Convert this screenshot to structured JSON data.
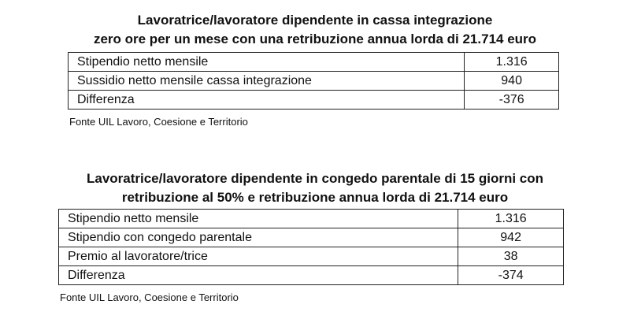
{
  "table1": {
    "title_line1": "Lavoratrice/lavoratore dipendente in cassa integrazione",
    "title_line2": "zero ore per un mese con una retribuzione annua lorda di 21.714 euro",
    "rows": [
      {
        "label": "Stipendio netto mensile",
        "value": "1.316"
      },
      {
        "label": "Sussidio netto mensile cassa integrazione",
        "value": "940"
      },
      {
        "label": "Differenza",
        "value": "-376"
      }
    ],
    "source": "Fonte UIL Lavoro, Coesione e Territorio"
  },
  "table2": {
    "title_line1": "Lavoratrice/lavoratore dipendente in congedo parentale di 15 giorni con",
    "title_line2": "retribuzione al 50% e retribuzione annua lorda di 21.714 euro",
    "rows": [
      {
        "label": "Stipendio netto mensile",
        "value": "1.316"
      },
      {
        "label": "Stipendio con congedo parentale",
        "value": "942"
      },
      {
        "label": "Premio al lavoratore/trice",
        "value": "38"
      },
      {
        "label": "Differenza",
        "value": "-374"
      }
    ],
    "source": "Fonte UIL Lavoro, Coesione e Territorio"
  }
}
